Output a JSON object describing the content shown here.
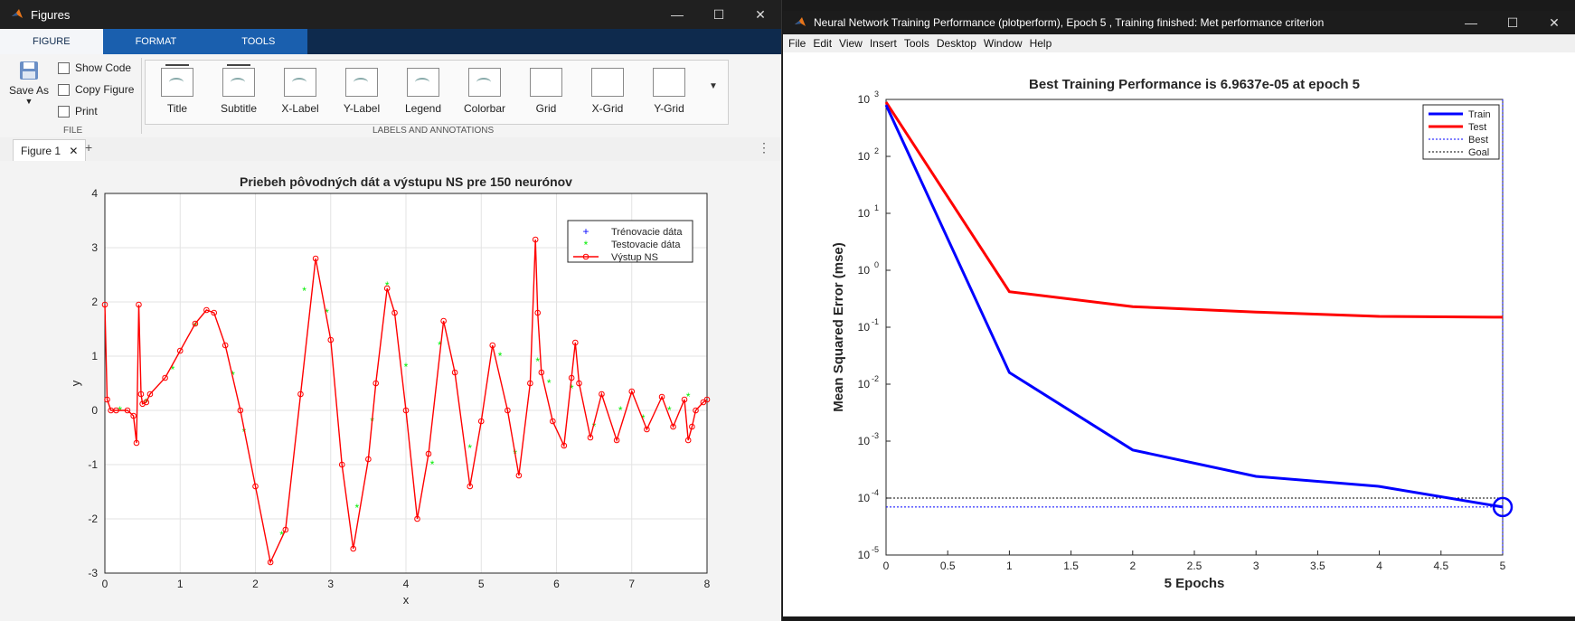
{
  "left_window": {
    "title": "Figures",
    "ribbon_tabs": [
      "FIGURE",
      "FORMAT",
      "TOOLS"
    ],
    "file_group": {
      "save_as": "Save As",
      "show_code": "Show Code",
      "copy_figure": "Copy Figure",
      "print": "Print",
      "label": "FILE"
    },
    "gallery": [
      "Title",
      "Subtitle",
      "X-Label",
      "Y-Label",
      "Legend",
      "Colorbar",
      "Grid",
      "X-Grid",
      "Y-Grid"
    ],
    "gallery_label": "LABELS AND ANNOTATIONS",
    "figure_tab": "Figure 1"
  },
  "right_window": {
    "title": "Neural Network Training Performance (plotperform), Epoch 5 , Training finished: Met performance criterion",
    "menu": [
      "File",
      "Edit",
      "View",
      "Insert",
      "Tools",
      "Desktop",
      "Window",
      "Help"
    ]
  },
  "chart_data": [
    {
      "type": "line",
      "title": "Priebeh pôvodných dát a výstupu NS pre 150 neurónov",
      "xlabel": "x",
      "ylabel": "y",
      "xlim": [
        0,
        8
      ],
      "ylim": [
        -3,
        4
      ],
      "xticks": [
        "0",
        "1",
        "2",
        "3",
        "4",
        "5",
        "6",
        "7",
        "8"
      ],
      "yticks": [
        "-3",
        "-2",
        "-1",
        "0",
        "1",
        "2",
        "3",
        "4"
      ],
      "grid": true,
      "legend": [
        "Trénovacie dáta",
        "Testovacie dáta",
        "Výstup NS"
      ],
      "legend_position": "top-right",
      "series": [
        {
          "name": "Výstup NS",
          "color": "#ff0000",
          "x": [
            0,
            0.03,
            0.08,
            0.15,
            0.3,
            0.38,
            0.42,
            0.45,
            0.48,
            0.5,
            0.55,
            0.6,
            0.8,
            1.0,
            1.2,
            1.35,
            1.45,
            1.6,
            1.8,
            2.0,
            2.2,
            2.4,
            2.6,
            2.8,
            3.0,
            3.15,
            3.3,
            3.5,
            3.6,
            3.75,
            3.85,
            4.0,
            4.15,
            4.3,
            4.5,
            4.65,
            4.85,
            5.0,
            5.15,
            5.35,
            5.5,
            5.65,
            5.72,
            5.75,
            5.8,
            5.95,
            6.1,
            6.2,
            6.25,
            6.3,
            6.45,
            6.6,
            6.8,
            7.0,
            7.2,
            7.4,
            7.55,
            7.7,
            7.75,
            7.8,
            7.85,
            7.95,
            8.0
          ],
          "y": [
            1.95,
            0.2,
            0.0,
            0.0,
            0.0,
            -0.1,
            -0.6,
            1.95,
            0.3,
            0.12,
            0.15,
            0.3,
            0.6,
            1.1,
            1.6,
            1.85,
            1.8,
            1.2,
            0.0,
            -1.4,
            -2.8,
            -2.2,
            0.3,
            2.8,
            1.3,
            -1.0,
            -2.55,
            -0.9,
            0.5,
            2.25,
            1.8,
            0.0,
            -2.0,
            -0.8,
            1.65,
            0.7,
            -1.4,
            -0.2,
            1.2,
            0.0,
            -1.2,
            0.5,
            3.15,
            1.8,
            0.7,
            -0.2,
            -0.65,
            0.6,
            1.25,
            0.5,
            -0.5,
            0.3,
            -0.55,
            0.35,
            -0.35,
            0.25,
            -0.3,
            0.2,
            -0.55,
            -0.3,
            0.0,
            0.15,
            0.2
          ]
        },
        {
          "name": "Testovacie dáta",
          "color": "#00ee00",
          "x": [
            0.2,
            0.55,
            0.9,
            1.2,
            1.7,
            1.85,
            2.35,
            2.65,
            2.95,
            3.35,
            3.55,
            3.75,
            4.0,
            4.35,
            4.45,
            4.85,
            5.25,
            5.45,
            5.75,
            5.9,
            6.2,
            6.5,
            6.85,
            7.15,
            7.5,
            7.75
          ],
          "y": [
            0.0,
            0.15,
            0.75,
            1.55,
            0.65,
            -0.4,
            -2.3,
            2.2,
            1.8,
            -1.8,
            -0.2,
            2.3,
            0.8,
            -1.0,
            1.2,
            -0.7,
            1.0,
            -0.8,
            0.9,
            0.5,
            0.4,
            -0.3,
            0.0,
            -0.15,
            0.0,
            0.25
          ]
        }
      ]
    },
    {
      "type": "line",
      "title": "Best Training Performance is 6.9637e-05 at epoch 5",
      "xlabel": "5 Epochs",
      "ylabel": "Mean Squared Error  (mse)",
      "xlim": [
        0,
        5
      ],
      "ylim": [
        1e-05,
        1000
      ],
      "yscale": "log",
      "xticks": [
        "0",
        "0.5",
        "1",
        "1.5",
        "2",
        "2.5",
        "3",
        "3.5",
        "4",
        "4.5",
        "5"
      ],
      "yticks_exponents": [
        "-5",
        "-4",
        "-3",
        "-2",
        "-1",
        "0",
        "1",
        "2",
        "3"
      ],
      "ytick_base": "10",
      "legend": [
        "Train",
        "Test",
        "Best",
        "Goal"
      ],
      "legend_position": "top-right",
      "series": [
        {
          "name": "Train",
          "color": "#0000ff",
          "x": [
            0,
            1,
            2,
            3,
            4,
            5
          ],
          "y": [
            800,
            0.016,
            0.0007,
            0.00024,
            0.00016,
            6.9637e-05
          ]
        },
        {
          "name": "Test",
          "color": "#ff0000",
          "x": [
            0,
            1,
            2,
            3,
            4,
            5
          ],
          "y": [
            900,
            0.42,
            0.23,
            0.185,
            0.155,
            0.15
          ]
        },
        {
          "name": "Best",
          "color": "#0000ff",
          "style": "dotted",
          "y_value": 6.9637e-05,
          "x_value": 5
        },
        {
          "name": "Goal",
          "color": "#000000",
          "style": "dotted",
          "y_value": 0.0001
        }
      ]
    }
  ]
}
